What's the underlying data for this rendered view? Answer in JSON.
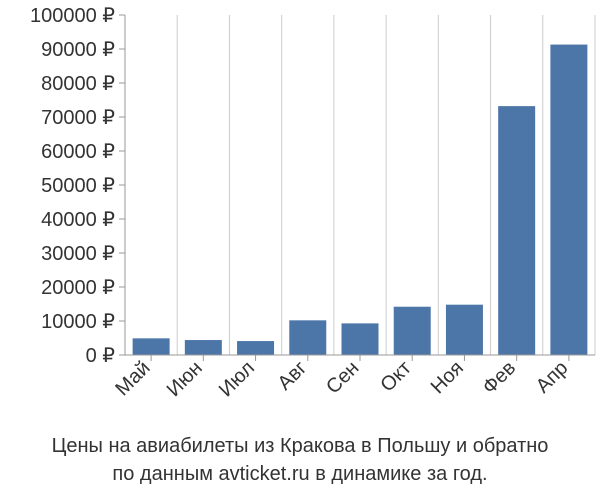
{
  "caption": {
    "line1": "Цены на авиабилеты из Кракова в Польшу и обратно",
    "line2": "по данным avticket.ru в динамике за год."
  },
  "chart_data": {
    "type": "bar",
    "categories": [
      "Май",
      "Июн",
      "Июл",
      "Авг",
      "Сен",
      "Окт",
      "Ноя",
      "Фев",
      "Апр"
    ],
    "values": [
      4900,
      4400,
      4100,
      10200,
      9300,
      14200,
      14800,
      73200,
      91300
    ],
    "ylim": [
      0,
      100000
    ],
    "yticks": [
      "0 ₽",
      "10000 ₽",
      "20000 ₽",
      "30000 ₽",
      "40000 ₽",
      "50000 ₽",
      "60000 ₽",
      "70000 ₽",
      "80000 ₽",
      "90000 ₽",
      "100000 ₽"
    ],
    "ytick_values": [
      0,
      10000,
      20000,
      30000,
      40000,
      50000,
      60000,
      70000,
      80000,
      90000,
      100000
    ],
    "grid": "vertical",
    "bar_color": "#4d76a8",
    "grid_color": "#cccccc",
    "axis_color": "#999999"
  }
}
